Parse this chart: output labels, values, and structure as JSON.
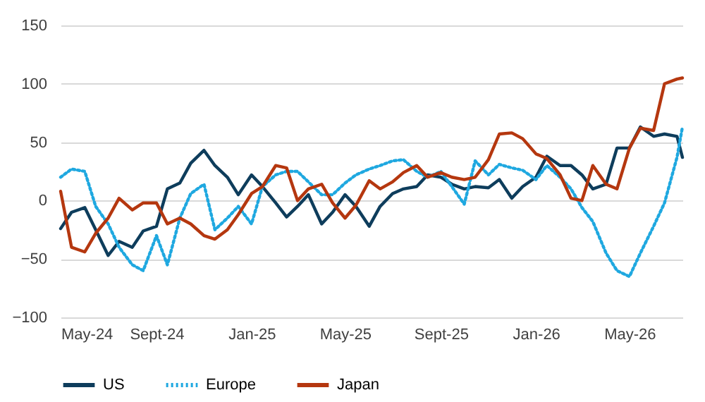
{
  "chart_data": {
    "type": "line",
    "x": [
      "2024-05-01",
      "2024-05-15",
      "2024-06-01",
      "2024-06-15",
      "2024-07-01",
      "2024-07-15",
      "2024-08-01",
      "2024-08-15",
      "2024-09-01",
      "2024-09-15",
      "2024-10-01",
      "2024-10-15",
      "2024-11-01",
      "2024-11-15",
      "2024-12-01",
      "2024-12-15",
      "2025-01-01",
      "2025-01-15",
      "2025-02-01",
      "2025-02-15",
      "2025-03-01",
      "2025-03-15",
      "2025-04-01",
      "2025-04-15",
      "2025-05-01",
      "2025-05-15",
      "2025-06-01",
      "2025-06-15",
      "2025-07-01",
      "2025-07-15",
      "2025-08-01",
      "2025-08-15",
      "2025-09-01",
      "2025-09-15",
      "2025-10-01",
      "2025-10-15",
      "2025-11-01",
      "2025-11-15",
      "2025-12-01",
      "2025-12-15",
      "2026-01-01",
      "2026-01-15",
      "2026-02-01",
      "2026-02-15",
      "2026-03-01",
      "2026-03-15",
      "2026-04-01",
      "2026-04-15",
      "2026-05-01",
      "2026-05-15",
      "2026-06-01",
      "2026-06-15",
      "2026-07-01",
      "2026-07-08"
    ],
    "series": [
      {
        "name": "US",
        "color": "#0e3d5c",
        "line_style": "solid",
        "values": [
          -24,
          -10,
          -6,
          -25,
          -47,
          -35,
          -40,
          -26,
          -22,
          10,
          15,
          32,
          43,
          30,
          20,
          5,
          22,
          12,
          -2,
          -14,
          -5,
          5,
          -20,
          -10,
          5,
          -5,
          -22,
          -5,
          6,
          10,
          12,
          22,
          20,
          14,
          10,
          12,
          11,
          18,
          2,
          12,
          20,
          38,
          30,
          30,
          22,
          10,
          14,
          45,
          45,
          63,
          55,
          57,
          55,
          37
        ]
      },
      {
        "name": "Europe",
        "color": "#1fa8e0",
        "line_style": "dotted",
        "values": [
          20,
          27,
          25,
          -5,
          -20,
          -40,
          -55,
          -60,
          -30,
          -55,
          -15,
          6,
          14,
          -25,
          -15,
          -5,
          -20,
          12,
          22,
          25,
          25,
          16,
          5,
          5,
          15,
          22,
          27,
          30,
          34,
          35,
          25,
          20,
          25,
          12,
          -3,
          34,
          22,
          31,
          28,
          26,
          18,
          30,
          20,
          10,
          -6,
          -18,
          -45,
          -60,
          -65,
          -45,
          -22,
          -2,
          37,
          63
        ]
      },
      {
        "name": "Japan",
        "color": "#b5370f",
        "line_style": "solid",
        "values": [
          8,
          -40,
          -44,
          -28,
          -15,
          2,
          -8,
          -2,
          -2,
          -20,
          -15,
          -20,
          -30,
          -33,
          -25,
          -12,
          6,
          12,
          30,
          28,
          0,
          10,
          14,
          -2,
          -15,
          -4,
          17,
          10,
          16,
          24,
          30,
          20,
          24,
          20,
          18,
          20,
          35,
          57,
          58,
          53,
          40,
          36,
          22,
          2,
          0,
          30,
          14,
          10,
          45,
          62,
          60,
          100,
          104,
          105
        ]
      }
    ],
    "xlim": [
      "2024-05-01",
      "2026-07-08"
    ],
    "xticks": [
      {
        "value": "2024-05-01",
        "label": "May-24"
      },
      {
        "value": "2024-09-01",
        "label": "Sept-24"
      },
      {
        "value": "2025-01-01",
        "label": "Jan-25"
      },
      {
        "value": "2025-05-01",
        "label": "May-25"
      },
      {
        "value": "2025-09-01",
        "label": "Sept-25"
      },
      {
        "value": "2026-01-01",
        "label": "Jan-26"
      },
      {
        "value": "2026-05-01",
        "label": "May-26"
      }
    ],
    "ylim": [
      -100,
      150
    ],
    "yticks": [
      -100,
      -50,
      0,
      50,
      100,
      150
    ],
    "grid": "y",
    "legend": "bottom",
    "marker": "none"
  }
}
